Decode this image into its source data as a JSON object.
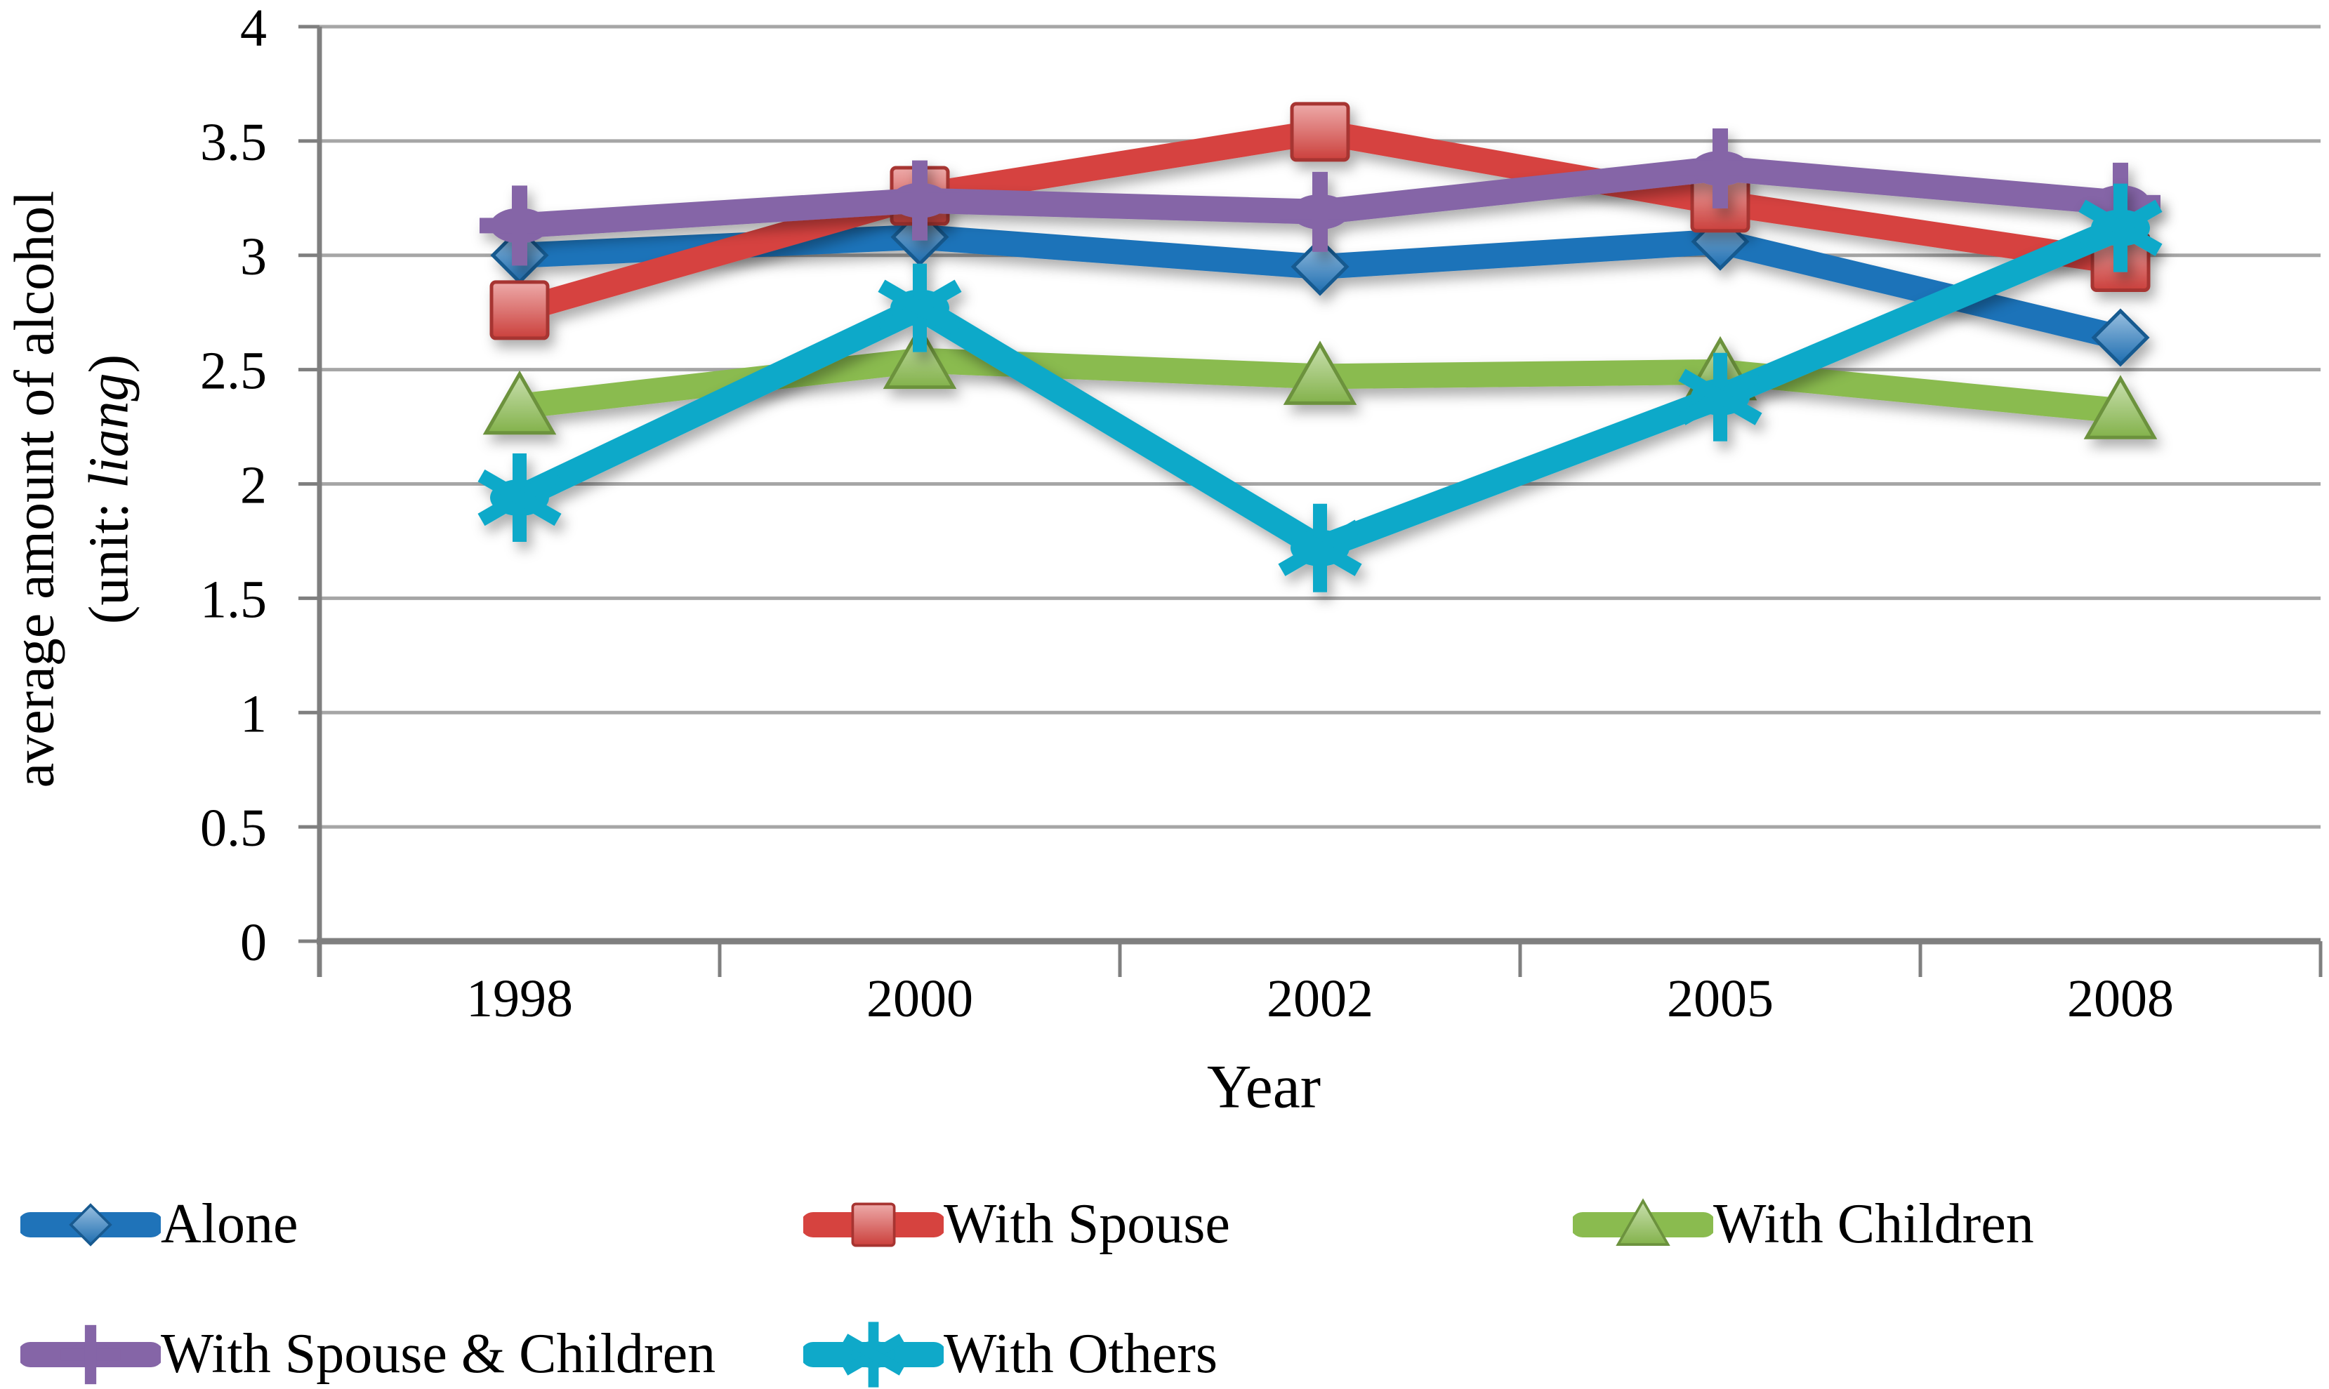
{
  "figure": {
    "background": "#FFFFFF"
  },
  "chart_data": {
    "type": "line",
    "title": "",
    "xlabel": "Year",
    "ylabel_line1": "average amount of alcohol",
    "ylabel_unit_prefix": "(unit: ",
    "ylabel_unit_italic": "liang",
    "ylabel_unit_suffix": ")",
    "categories": [
      "1998",
      "2000",
      "2002",
      "2005",
      "2008"
    ],
    "y_ticks": [
      "0",
      "0.5",
      "1",
      "1.5",
      "2",
      "2.5",
      "3",
      "3.5",
      "4"
    ],
    "ylim": [
      0,
      4
    ],
    "ytick_step": 0.5,
    "grid": true,
    "legend_position": "bottom, two rows",
    "axis_color": "#7F7F7F",
    "gridline_color": "#A6A6A6",
    "series": [
      {
        "name": "Alone",
        "marker": "diamond",
        "color": "#1F73B9",
        "values": [
          3.0,
          3.08,
          2.95,
          3.06,
          2.64
        ]
      },
      {
        "name": "With Spouse",
        "marker": "square",
        "color": "#D6433F",
        "values": [
          2.76,
          3.26,
          3.54,
          3.23,
          2.97
        ]
      },
      {
        "name": "With Children",
        "marker": "triangle",
        "color": "#8ABB4F",
        "values": [
          2.34,
          2.54,
          2.47,
          2.49,
          2.32
        ]
      },
      {
        "name": "With Spouse & Children",
        "marker": "plus",
        "color": "#8565A7",
        "values": [
          3.13,
          3.24,
          3.19,
          3.38,
          3.23
        ]
      },
      {
        "name": "With Others",
        "marker": "star",
        "color": "#0FA9C9",
        "values": [
          1.94,
          2.77,
          1.72,
          2.38,
          3.12
        ]
      }
    ]
  }
}
